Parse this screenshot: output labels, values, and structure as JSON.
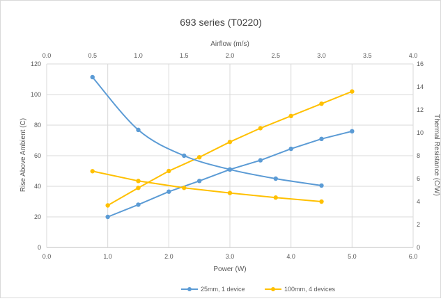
{
  "chart_data": {
    "type": "line",
    "title": "693 series (T0220)",
    "x_primary": {
      "label": "Power (W)",
      "range": [
        0,
        6
      ],
      "ticks": [
        "0.0",
        "1.0",
        "2.0",
        "3.0",
        "4.0",
        "5.0",
        "6.0"
      ]
    },
    "x_secondary": {
      "label": "Airflow (m/s)",
      "range": [
        0,
        4
      ],
      "ticks": [
        "0.0",
        "0.5",
        "1.0",
        "1.5",
        "2.0",
        "2.5",
        "3.0",
        "3.5",
        "4.0"
      ]
    },
    "y_primary": {
      "label": "Rise Above Ambient (C)",
      "range": [
        0,
        120
      ],
      "ticks": [
        "0",
        "20",
        "40",
        "60",
        "80",
        "100",
        "120"
      ]
    },
    "y_secondary": {
      "label": "Thermal Resistance (C/W)",
      "range": [
        0,
        16
      ],
      "ticks": [
        "0",
        "2",
        "4",
        "6",
        "8",
        "10",
        "12",
        "14",
        "16"
      ]
    },
    "grid": true,
    "legend_position": "bottom",
    "series": [
      {
        "name": "25mm, 1 device",
        "color": "#5b9bd5",
        "x_axis": "primary",
        "y_axis": "primary",
        "x": [
          1.0,
          1.5,
          2.0,
          2.5,
          3.0,
          3.5,
          4.0,
          4.5,
          5.0
        ],
        "y": [
          20,
          28,
          36.5,
          43.5,
          51,
          57,
          64.5,
          71,
          76
        ]
      },
      {
        "name": "100mm, 4 devices",
        "color": "#ffc000",
        "x_axis": "primary",
        "y_axis": "primary",
        "x": [
          1.0,
          1.5,
          2.0,
          2.5,
          3.0,
          3.5,
          4.0,
          4.5,
          5.0
        ],
        "y": [
          27.5,
          39,
          50,
          59,
          69,
          78,
          86,
          94,
          102
        ]
      },
      {
        "name": "25mm, 1 device",
        "color": "#5b9bd5",
        "x_axis": "secondary",
        "y_axis": "secondary",
        "smooth": true,
        "x": [
          0.5,
          1.0,
          1.5,
          2.0,
          2.5,
          3.0
        ],
        "y": [
          14.85,
          10.25,
          8.0,
          6.8,
          6.0,
          5.4
        ]
      },
      {
        "name": "100mm, 4 devices",
        "color": "#ffc000",
        "x_axis": "secondary",
        "y_axis": "secondary",
        "x": [
          0.5,
          1.0,
          1.5,
          2.0,
          2.5,
          3.0
        ],
        "y": [
          6.65,
          5.8,
          5.2,
          4.75,
          4.35,
          4.0
        ]
      }
    ]
  }
}
